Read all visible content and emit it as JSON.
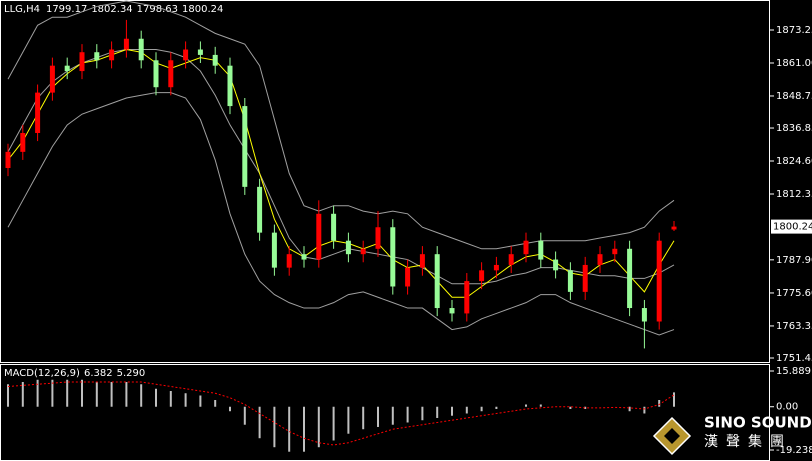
{
  "chart_data": [
    {
      "type": "candlestick",
      "title": "LLG,H4",
      "open": [
        1822,
        1828,
        1835,
        1850,
        1860,
        1858,
        1865,
        1862,
        1866,
        1870,
        1862,
        1852,
        1862,
        1866,
        1864,
        1860,
        1845,
        1815,
        1798,
        1785,
        1790,
        1788,
        1805,
        1795,
        1790,
        1792,
        1800,
        1778,
        1785,
        1790,
        1770,
        1768,
        1780,
        1784,
        1786,
        1790,
        1795,
        1788,
        1784,
        1776,
        1786,
        1790,
        1792,
        1770,
        1765,
        1799.17
      ],
      "high": [
        1831,
        1838,
        1853,
        1863,
        1863,
        1868,
        1868,
        1869,
        1877,
        1873,
        1865,
        1865,
        1869,
        1869,
        1867,
        1863,
        1848,
        1818,
        1801,
        1793,
        1793,
        1810,
        1808,
        1798,
        1795,
        1806,
        1803,
        1788,
        1793,
        1793,
        1773,
        1783,
        1787,
        1789,
        1793,
        1798,
        1798,
        1791,
        1787,
        1789,
        1793,
        1795,
        1795,
        1773,
        1798,
        1802.34
      ],
      "low": [
        1819,
        1825,
        1832,
        1847,
        1855,
        1855,
        1859,
        1859,
        1863,
        1859,
        1849,
        1849,
        1859,
        1861,
        1857,
        1842,
        1812,
        1795,
        1782,
        1782,
        1785,
        1785,
        1792,
        1787,
        1787,
        1789,
        1775,
        1775,
        1782,
        1767,
        1765,
        1765,
        1777,
        1781,
        1783,
        1787,
        1785,
        1781,
        1773,
        1773,
        1783,
        1787,
        1767,
        1755,
        1762,
        1798.63
      ],
      "close": [
        1828,
        1835,
        1850,
        1860,
        1858,
        1865,
        1862,
        1866,
        1870,
        1862,
        1852,
        1862,
        1866,
        1864,
        1860,
        1845,
        1815,
        1798,
        1785,
        1790,
        1788,
        1805,
        1795,
        1790,
        1792,
        1800,
        1778,
        1785,
        1790,
        1770,
        1768,
        1780,
        1784,
        1786,
        1790,
        1795,
        1788,
        1784,
        1776,
        1786,
        1790,
        1792,
        1770,
        1765,
        1795,
        1800.24
      ],
      "up_color": "#ff0000",
      "down_color": "#98fb98",
      "bands": {
        "color": "#a0a0a0",
        "upper": [
          1855,
          1865,
          1875,
          1878,
          1878,
          1880,
          1882,
          1883,
          1884,
          1883,
          1882,
          1880,
          1878,
          1875,
          1872,
          1870,
          1868,
          1860,
          1840,
          1820,
          1808,
          1806,
          1808,
          1808,
          1806,
          1805,
          1806,
          1805,
          1800,
          1798,
          1796,
          1794,
          1792,
          1792,
          1793,
          1794,
          1795,
          1795,
          1795,
          1795,
          1796,
          1797,
          1798,
          1800,
          1806,
          1810
        ],
        "middle": [
          1828,
          1838,
          1848,
          1854,
          1858,
          1861,
          1863,
          1865,
          1866,
          1866,
          1866,
          1865,
          1863,
          1858,
          1849,
          1838,
          1829,
          1820,
          1808,
          1796,
          1789,
          1788,
          1790,
          1792,
          1791,
          1790,
          1789,
          1788,
          1785,
          1782,
          1779,
          1779,
          1779,
          1780,
          1782,
          1783,
          1785,
          1785,
          1784,
          1783,
          1782,
          1782,
          1781,
          1781,
          1783,
          1786
        ],
        "lower": [
          1800,
          1810,
          1820,
          1830,
          1838,
          1842,
          1844,
          1846,
          1848,
          1849,
          1850,
          1850,
          1848,
          1840,
          1825,
          1805,
          1790,
          1780,
          1775,
          1772,
          1770,
          1770,
          1772,
          1775,
          1776,
          1774,
          1772,
          1770,
          1770,
          1766,
          1762,
          1763,
          1766,
          1768,
          1770,
          1772,
          1775,
          1775,
          1772,
          1770,
          1768,
          1766,
          1764,
          1762,
          1760,
          1762
        ]
      },
      "ma": {
        "color": "#ffff00",
        "values": [
          1825,
          1832,
          1842,
          1852,
          1857,
          1861,
          1862,
          1864,
          1866,
          1865,
          1861,
          1859,
          1861,
          1863,
          1862,
          1856,
          1840,
          1820,
          1803,
          1792,
          1789,
          1793,
          1795,
          1794,
          1792,
          1794,
          1788,
          1785,
          1786,
          1780,
          1774,
          1774,
          1778,
          1782,
          1786,
          1789,
          1790,
          1787,
          1783,
          1782,
          1786,
          1788,
          1782,
          1776,
          1786,
          1795
        ]
      },
      "ylim": [
        1749.96,
        1884.39
      ],
      "yticks": [
        1873.25,
        {
          "value": 1861,
          "label": "1861.00"
        },
        {
          "value": 1848.75,
          "label": "1848.75"
        },
        1836.85,
        {
          "value": 1824.6,
          "label": "1824.60"
        },
        1812.35,
        {
          "value": 1787.9,
          "label": "1787.90"
        },
        {
          "value": 1775.6,
          "label": "1775.60"
        },
        1763.35,
        1751.45
      ]
    },
    {
      "type": "macd",
      "title": "MACD(12,26,9)",
      "histogram": {
        "color": "#c0c0c0",
        "values": [
          10,
          11,
          12,
          12,
          12,
          12,
          11,
          11,
          11,
          10,
          8,
          7,
          6,
          5,
          3,
          -2,
          -8,
          -14,
          -18,
          -20,
          -20,
          -18,
          -15,
          -12,
          -10,
          -9,
          -8,
          -7,
          -6,
          -5,
          -4,
          -3,
          -2,
          -1,
          0,
          1,
          1,
          0,
          -1,
          -1,
          0,
          0,
          -2,
          -3,
          3,
          6.382
        ]
      },
      "signal": {
        "color": "#ff0000",
        "values": [
          9,
          9.5,
          10,
          10.5,
          11,
          11,
          11,
          11,
          11,
          11,
          10,
          9,
          8,
          7,
          6,
          4,
          1,
          -3,
          -7,
          -11,
          -14,
          -16,
          -17,
          -16,
          -14,
          -12,
          -10,
          -9,
          -8,
          -7,
          -6,
          -5,
          -4,
          -3,
          -2,
          -1,
          -0.5,
          0,
          0,
          -0.5,
          -0.5,
          -0.3,
          -0.5,
          -1,
          1,
          5.29
        ]
      },
      "value_labels": [
        "6.382",
        "5.290"
      ],
      "ylim": [
        -24.13,
        18.56
      ],
      "yticks": [
        15.889,
        {
          "value": 0,
          "label": "0.00"
        },
        -19.238
      ]
    }
  ],
  "watermark": {
    "brand": "SINO SOUND",
    "subtitle": "漢聲集團"
  }
}
